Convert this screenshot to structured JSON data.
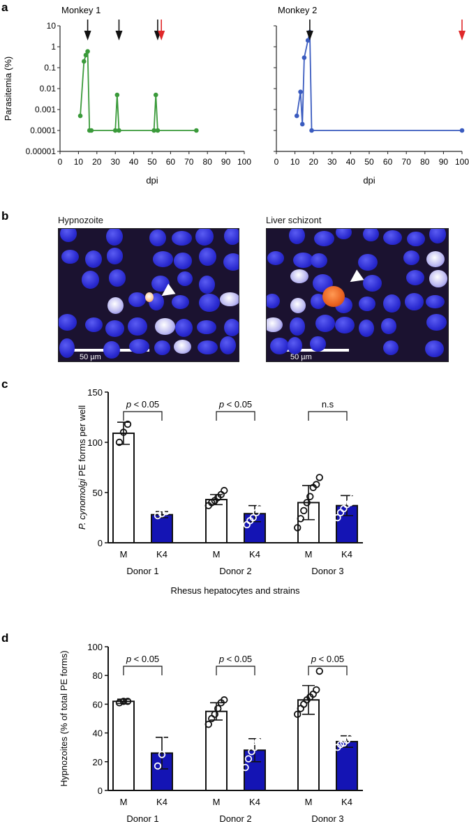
{
  "panel_labels": {
    "a": "a",
    "b": "b",
    "c": "c",
    "d": "d"
  },
  "chart_data": [
    {
      "type": "line",
      "panel": "a",
      "title": "Monkey 1",
      "xlabel": "dpi",
      "ylabel": "Parasitemia (%)",
      "yscale": "log",
      "xlim": [
        0,
        100
      ],
      "ylim": [
        1e-05,
        10
      ],
      "xticks": [
        "0",
        "10",
        "20",
        "30",
        "40",
        "50",
        "60",
        "70",
        "80",
        "90",
        "100"
      ],
      "yticks": [
        "0.00001",
        "0.0001",
        "0.001",
        "0.01",
        "0.1",
        "1",
        "10"
      ],
      "color": "#3a9a3a",
      "x": [
        11,
        13,
        14,
        15,
        16,
        17,
        30,
        31,
        32,
        51,
        52,
        53,
        74
      ],
      "y": [
        0.0005,
        0.2,
        0.4,
        0.6,
        0.0001,
        0.0001,
        0.0001,
        0.005,
        0.0001,
        0.0001,
        0.005,
        0.0001,
        0.0001
      ],
      "black_arrows_dpi": [
        15,
        32,
        53
      ],
      "red_arrows_dpi": [
        55
      ]
    },
    {
      "type": "line",
      "panel": "a",
      "title": "Monkey 2",
      "xlabel": "dpi",
      "ylabel": "",
      "yscale": "log",
      "xlim": [
        0,
        100
      ],
      "ylim": [
        1e-05,
        10
      ],
      "xticks": [
        "0",
        "10",
        "20",
        "30",
        "40",
        "50",
        "60",
        "70",
        "80",
        "90",
        "100"
      ],
      "color": "#3a5bbf",
      "x": [
        11,
        13,
        14,
        15,
        17,
        18,
        19,
        100
      ],
      "y": [
        0.0005,
        0.007,
        0.0002,
        0.3,
        2,
        5,
        0.0001,
        0.0001
      ],
      "black_arrows_dpi": [
        18
      ],
      "red_arrows_dpi": [
        100
      ]
    },
    {
      "type": "bar",
      "panel": "c",
      "categories": [
        "M",
        "K4",
        "M",
        "K4",
        "M",
        "K4"
      ],
      "groups": [
        "Donor 1",
        "Donor 2",
        "Donor 3"
      ],
      "values": [
        109,
        28,
        43,
        29,
        40,
        37
      ],
      "errors": [
        11,
        3,
        5,
        8,
        17,
        10
      ],
      "fills": [
        "#ffffff",
        "#1414b4",
        "#ffffff",
        "#1414b4",
        "#ffffff",
        "#1414b4"
      ],
      "points": [
        [
          100,
          110,
          118
        ],
        [
          27,
          29,
          31
        ],
        [
          37,
          40,
          42,
          45,
          48,
          52
        ],
        [
          18,
          22,
          25,
          30,
          35,
          40
        ],
        [
          15,
          24,
          32,
          40,
          46,
          55,
          58,
          65
        ],
        [
          25,
          30,
          34,
          38,
          40,
          45,
          48
        ]
      ],
      "ylabel_italic": "P. cynomolgi",
      "ylabel_rest": " PE forms per well",
      "xlabel": "Rhesus hepatocytes and strains",
      "ylim": [
        0,
        150
      ],
      "yticks": [
        "0",
        "50",
        "100",
        "150"
      ],
      "significance": [
        {
          "p": "p",
          "rest": " < 0.05"
        },
        {
          "p": "p",
          "rest": " < 0.05"
        },
        {
          "p": "",
          "rest": "n.s"
        }
      ]
    },
    {
      "type": "bar",
      "panel": "d",
      "categories": [
        "M",
        "K4",
        "M",
        "K4",
        "M",
        "K4"
      ],
      "groups": [
        "Donor 1",
        "Donor 2",
        "Donor 3"
      ],
      "values": [
        62,
        26,
        55,
        28,
        63,
        34
      ],
      "errors": [
        1.5,
        11,
        6,
        8,
        10,
        4
      ],
      "fills": [
        "#ffffff",
        "#1414b4",
        "#ffffff",
        "#1414b4",
        "#ffffff",
        "#1414b4"
      ],
      "points": [
        [
          61,
          62,
          62
        ],
        [
          17,
          25,
          37
        ],
        [
          46,
          50,
          53,
          57,
          61,
          63
        ],
        [
          16,
          22,
          27,
          30,
          34,
          36,
          37
        ],
        [
          53,
          57,
          60,
          63,
          65,
          67,
          70,
          83
        ],
        [
          30,
          32,
          33,
          35,
          37,
          40,
          42
        ]
      ],
      "ylabel": "Hypnozoites (% of total PE forms)",
      "xlabel": "Rhesus hepatocytes and strains",
      "ylim": [
        0,
        100
      ],
      "yticks": [
        "0",
        "20",
        "40",
        "60",
        "80",
        "100"
      ],
      "significance": [
        {
          "p": "p",
          "rest": " < 0.05"
        },
        {
          "p": "p",
          "rest": " < 0.05"
        },
        {
          "p": "p",
          "rest": " < 0.05"
        }
      ]
    }
  ],
  "micrographs": [
    {
      "title": "Hypnozoite",
      "scale_label": "50 µm"
    },
    {
      "title": "Liver schizont",
      "scale_label": "50 µm"
    }
  ]
}
